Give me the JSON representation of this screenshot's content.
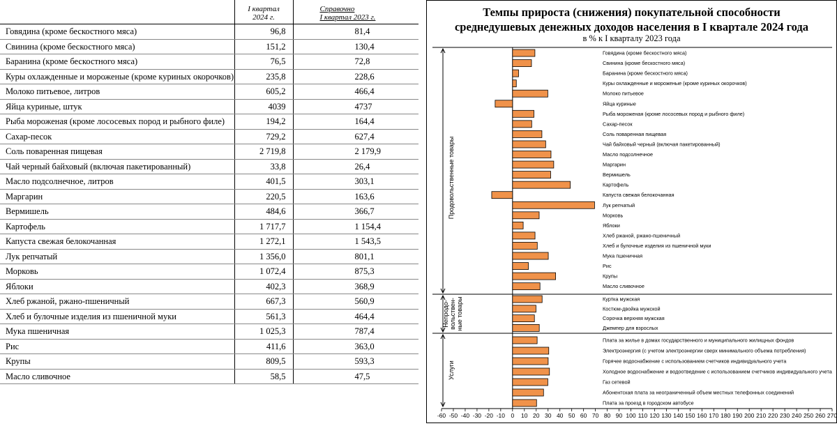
{
  "table": {
    "header": {
      "col1_line1": "I квартал",
      "col1_line2": "2024 г.",
      "col2_line1": "Справочно",
      "col2_line2": "I квартал 2023 г."
    },
    "rows": [
      {
        "name": "Говядина (кроме бескостного мяса)",
        "q2024": "96,8",
        "q2023": "81,4"
      },
      {
        "name": "Свинина (кроме бескостного мяса)",
        "q2024": "151,2",
        "q2023": "130,4"
      },
      {
        "name": "Баранина (кроме бескостного мяса)",
        "q2024": "76,5",
        "q2023": "72,8"
      },
      {
        "name": "Куры охлажденные и мороженые (кроме куриных окорочков)",
        "q2024": "235,8",
        "q2023": "228,6"
      },
      {
        "name": "Молоко питьевое, литров",
        "q2024": "605,2",
        "q2023": "466,4"
      },
      {
        "name": "Яйца куриные, штук",
        "q2024": "4039",
        "q2023": "4737"
      },
      {
        "name": "Рыба мороженая (кроме лососевых пород и рыбного филе)",
        "q2024": "194,2",
        "q2023": "164,4"
      },
      {
        "name": "Сахар-песок",
        "q2024": "729,2",
        "q2023": "627,4"
      },
      {
        "name": "Соль поваренная  пищевая",
        "q2024": "2 719,8",
        "q2023": "2 179,9"
      },
      {
        "name": "Чай черный байховый (включая пакетированный)",
        "q2024": "33,8",
        "q2023": "26,4"
      },
      {
        "name": "Масло подсолнечное, литров",
        "q2024": "401,5",
        "q2023": "303,1"
      },
      {
        "name": "Маргарин",
        "q2024": "220,5",
        "q2023": "163,6"
      },
      {
        "name": "Вермишель",
        "q2024": "484,6",
        "q2023": "366,7"
      },
      {
        "name": "Картофель",
        "q2024": "1 717,7",
        "q2023": "1 154,4"
      },
      {
        "name": "Капуста свежая белокочанная",
        "q2024": "1 272,1",
        "q2023": "1 543,5"
      },
      {
        "name": "Лук репчатый",
        "q2024": "1 356,0",
        "q2023": "801,1"
      },
      {
        "name": "Морковь",
        "q2024": "1 072,4",
        "q2023": "875,3"
      },
      {
        "name": "Яблоки",
        "q2024": "402,3",
        "q2023": "368,9"
      },
      {
        "name": "Хлеб ржаной, ржано-пшеничный",
        "q2024": "667,3",
        "q2023": "560,9"
      },
      {
        "name": "Хлеб и булочные изделия из пшеничной муки",
        "q2024": "561,3",
        "q2023": "464,4"
      },
      {
        "name": "Мука пшеничная",
        "q2024": "1 025,3",
        "q2023": "787,4"
      },
      {
        "name": "Рис",
        "q2024": "411,6",
        "q2023": "363,0"
      },
      {
        "name": "Крупы",
        "q2024": "809,5",
        "q2023": "593,3"
      },
      {
        "name": "Масло сливочное",
        "q2024": "58,5",
        "q2023": "47,5"
      }
    ]
  },
  "colors": {
    "bar": "#f0924a",
    "bar_stroke": "#000000"
  },
  "chart_data": {
    "type": "bar",
    "orientation": "horizontal",
    "title_line1": "Темпы прироста (снижения) покупательной способности",
    "title_line2": "среднедушевых денежных доходов населения в I квартале 2024 года",
    "subtitle": "в % к I кварталу 2023 года",
    "xlim": [
      -60,
      270
    ],
    "xticks": [
      -60,
      -50,
      -40,
      -30,
      -20,
      -10,
      0,
      10,
      20,
      30,
      40,
      50,
      60,
      70,
      80,
      90,
      100,
      110,
      120,
      130,
      140,
      150,
      160,
      170,
      180,
      190,
      200,
      210,
      220,
      230,
      240,
      250,
      260,
      270
    ],
    "groups": [
      {
        "name": "Продовольственные товары",
        "categories": [
          "Говядина (кроме бескостного мяса)",
          "Свинина (кроме бескостного мяса)",
          "Баранина (кроме бескостного мяса)",
          "Куры охлажденные и мороженые (кроме куриных окорочков)",
          "Молоко питьевое",
          "Яйца куриные",
          "Рыба мороженая (кроме лососевых пород и рыбного филе)",
          "Сахар-песок",
          "Соль поваренная пищевая",
          "Чай байховый черный  (включая пакетированный)",
          "Масло подсолнечное",
          "Маргарин",
          "Вермишель",
          "Картофель",
          "Капуста свежая белокочанная",
          "Лук репчатый",
          "Морковь",
          "Яблоки",
          "Хлеб ржаной, ржано-пшеничный",
          "Хлеб и булочные изделия из пшеничной муки",
          "Мука пшеничная",
          "Рис",
          "Крупы",
          "Масло сливочное"
        ],
        "values": [
          18.9,
          16.0,
          5.1,
          3.2,
          29.8,
          -14.7,
          18.1,
          16.2,
          24.8,
          28.0,
          32.5,
          34.8,
          32.2,
          48.8,
          -17.6,
          69.3,
          22.5,
          9.0,
          19.0,
          20.9,
          30.2,
          13.4,
          36.4,
          23.2
        ]
      },
      {
        "name_line1": "Непродо-",
        "name_line2": "вольствен-",
        "name_line3": "ные товары",
        "categories": [
          "Куртка мужская",
          "Костюм-двойка  мужской",
          "Сорочка верхняя мужская",
          "Джемпер для взрослых"
        ],
        "values": [
          25.0,
          19.8,
          18.5,
          22.6
        ]
      },
      {
        "name": "Услуги",
        "categories": [
          "Плата за жилье в домах государственного и муниципального жилищных фондов",
          "Электроэнергия (с учетом электроэнергии сверх минимального объема потребления)",
          "Горячее водоснабжение с использованием счетчиков индивидуального учета",
          "Холодное водоснабжение и водоотведение с использованием счетчиков индивидуального учета",
          "Газ сетевой",
          "Абонентская плата за неограниченный объем местных телефонных соединений",
          "Плата за проезд в городском автобусе"
        ],
        "values": [
          20.8,
          30.6,
          30.1,
          31.2,
          29.8,
          26.2,
          20.3
        ]
      }
    ]
  }
}
